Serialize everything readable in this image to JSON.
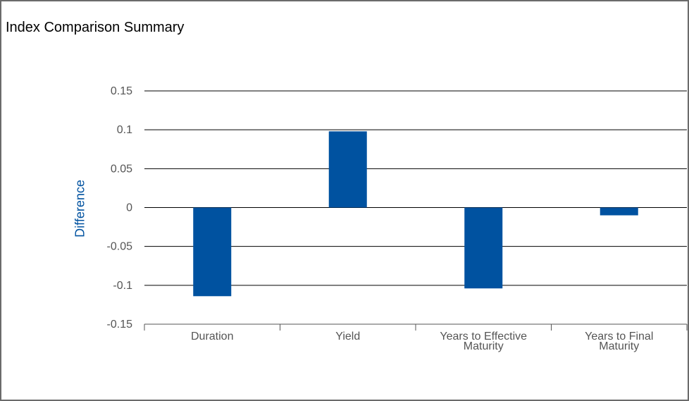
{
  "chart_data": {
    "type": "bar",
    "title": "Index Comparison Summary",
    "xlabel": "",
    "ylabel": "Difference",
    "categories": [
      [
        "Duration"
      ],
      [
        "Yield"
      ],
      [
        "Years to Effective",
        "Maturity"
      ],
      [
        "Years to Final",
        "Maturity"
      ]
    ],
    "values": [
      -0.114,
      0.098,
      -0.104,
      -0.01
    ],
    "ylim": [
      -0.15,
      0.15
    ],
    "yticks": [
      0.15,
      0.1,
      0.05,
      0,
      -0.05,
      -0.1,
      -0.15
    ],
    "ytick_labels": [
      "0.15",
      "0.1",
      "0.05",
      "0",
      "-0.05",
      "-0.1",
      "-0.15"
    ],
    "grid": true,
    "legend": "none",
    "colors": {
      "bar": "#0052a0",
      "ylabel": "#0052a0",
      "grid": "#000000",
      "tick_label": "#555555",
      "frame": "#6b6b6b"
    }
  }
}
